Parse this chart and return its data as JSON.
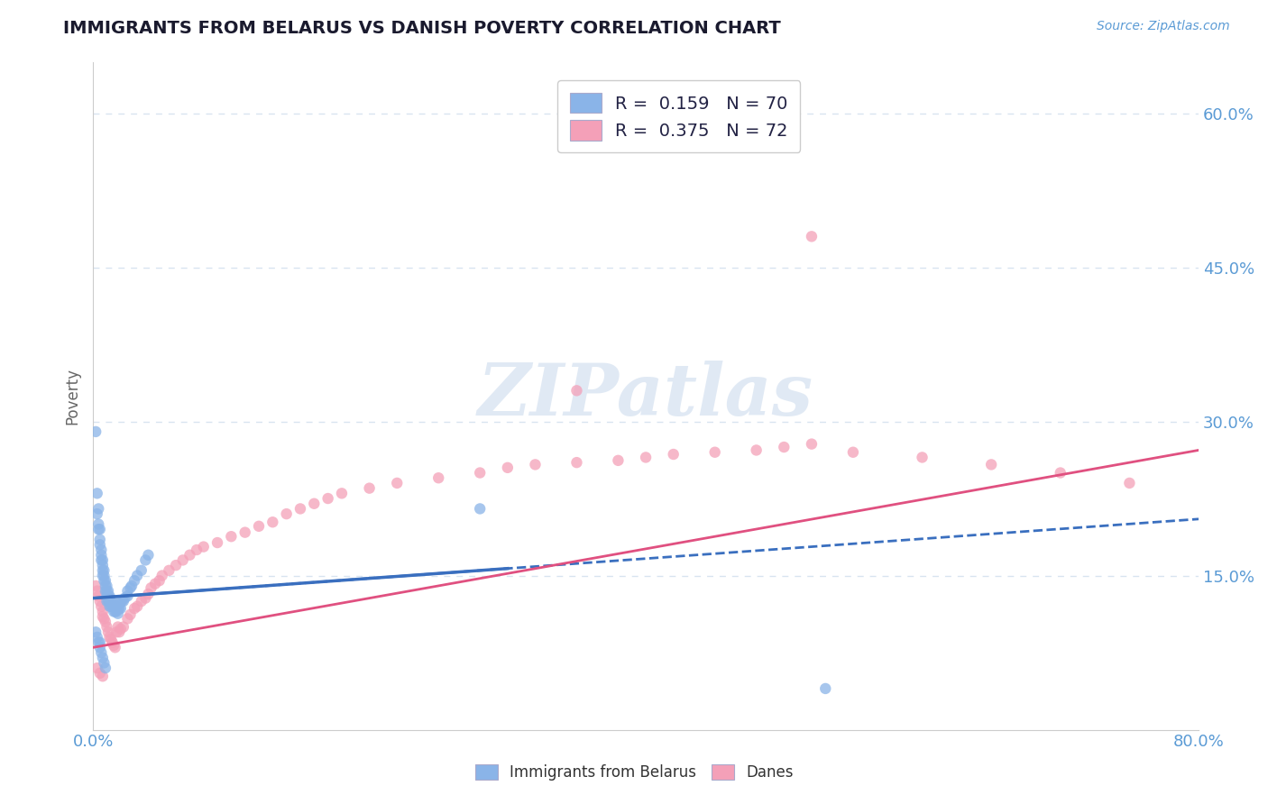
{
  "title": "IMMIGRANTS FROM BELARUS VS DANISH POVERTY CORRELATION CHART",
  "source_text": "Source: ZipAtlas.com",
  "ylabel": "Poverty",
  "xlim": [
    0.0,
    0.8
  ],
  "ylim": [
    0.0,
    0.65
  ],
  "yticks": [
    0.15,
    0.3,
    0.45,
    0.6
  ],
  "ytick_labels": [
    "15.0%",
    "30.0%",
    "45.0%",
    "60.0%"
  ],
  "xticks": [
    0.0,
    0.1,
    0.2,
    0.3,
    0.4,
    0.5,
    0.6,
    0.7,
    0.8
  ],
  "xtick_labels": [
    "0.0%",
    "",
    "",
    "",
    "",
    "",
    "",
    "",
    "80.0%"
  ],
  "color_blue": "#8AB4E8",
  "color_pink": "#F4A0B8",
  "color_blue_line": "#3A6FBF",
  "color_pink_line": "#E05080",
  "color_axis_text": "#5B9BD5",
  "watermark": "ZIPatlas",
  "background_color": "#FFFFFF",
  "grid_color": "#D8E4F0",
  "blue_line_x0": 0.0,
  "blue_line_x1": 0.8,
  "blue_line_y0": 0.128,
  "blue_line_y1": 0.205,
  "pink_line_x0": 0.0,
  "pink_line_x1": 0.8,
  "pink_line_y0": 0.08,
  "pink_line_y1": 0.272,
  "legend_label1": "R =  0.159   N = 70",
  "legend_label2": "R =  0.375   N = 72",
  "legend_xlabel": "Immigrants from Belarus",
  "legend_xlabel2": "Danes",
  "blue_scatter_x": [
    0.002,
    0.003,
    0.003,
    0.004,
    0.004,
    0.004,
    0.005,
    0.005,
    0.005,
    0.006,
    0.006,
    0.006,
    0.007,
    0.007,
    0.007,
    0.007,
    0.008,
    0.008,
    0.008,
    0.009,
    0.009,
    0.009,
    0.01,
    0.01,
    0.01,
    0.01,
    0.011,
    0.011,
    0.011,
    0.012,
    0.012,
    0.012,
    0.013,
    0.013,
    0.014,
    0.014,
    0.015,
    0.015,
    0.016,
    0.016,
    0.017,
    0.017,
    0.018,
    0.018,
    0.019,
    0.02,
    0.02,
    0.021,
    0.022,
    0.023,
    0.025,
    0.025,
    0.027,
    0.028,
    0.03,
    0.032,
    0.035,
    0.038,
    0.04,
    0.002,
    0.003,
    0.004,
    0.005,
    0.005,
    0.006,
    0.007,
    0.008,
    0.009,
    0.28,
    0.53
  ],
  "blue_scatter_y": [
    0.29,
    0.23,
    0.21,
    0.215,
    0.2,
    0.195,
    0.195,
    0.185,
    0.18,
    0.175,
    0.17,
    0.165,
    0.165,
    0.16,
    0.155,
    0.15,
    0.155,
    0.15,
    0.145,
    0.145,
    0.14,
    0.135,
    0.14,
    0.135,
    0.13,
    0.125,
    0.135,
    0.13,
    0.125,
    0.13,
    0.125,
    0.12,
    0.125,
    0.12,
    0.125,
    0.12,
    0.12,
    0.115,
    0.12,
    0.115,
    0.12,
    0.115,
    0.118,
    0.113,
    0.118,
    0.125,
    0.118,
    0.125,
    0.125,
    0.128,
    0.13,
    0.135,
    0.138,
    0.14,
    0.145,
    0.15,
    0.155,
    0.165,
    0.17,
    0.095,
    0.09,
    0.085,
    0.085,
    0.08,
    0.075,
    0.07,
    0.065,
    0.06,
    0.215,
    0.04
  ],
  "pink_scatter_x": [
    0.002,
    0.003,
    0.004,
    0.005,
    0.006,
    0.007,
    0.007,
    0.008,
    0.009,
    0.01,
    0.011,
    0.012,
    0.013,
    0.014,
    0.015,
    0.016,
    0.017,
    0.018,
    0.019,
    0.02,
    0.022,
    0.025,
    0.027,
    0.03,
    0.032,
    0.035,
    0.038,
    0.04,
    0.042,
    0.045,
    0.048,
    0.05,
    0.055,
    0.06,
    0.065,
    0.07,
    0.075,
    0.08,
    0.09,
    0.1,
    0.11,
    0.12,
    0.13,
    0.14,
    0.15,
    0.16,
    0.17,
    0.18,
    0.2,
    0.22,
    0.25,
    0.28,
    0.3,
    0.32,
    0.35,
    0.38,
    0.4,
    0.42,
    0.45,
    0.48,
    0.5,
    0.52,
    0.55,
    0.6,
    0.65,
    0.7,
    0.75,
    0.003,
    0.005,
    0.007,
    0.35,
    0.52
  ],
  "pink_scatter_y": [
    0.14,
    0.135,
    0.13,
    0.125,
    0.12,
    0.115,
    0.11,
    0.108,
    0.105,
    0.1,
    0.095,
    0.09,
    0.088,
    0.085,
    0.082,
    0.08,
    0.095,
    0.1,
    0.095,
    0.098,
    0.1,
    0.108,
    0.112,
    0.118,
    0.12,
    0.125,
    0.128,
    0.132,
    0.138,
    0.142,
    0.145,
    0.15,
    0.155,
    0.16,
    0.165,
    0.17,
    0.175,
    0.178,
    0.182,
    0.188,
    0.192,
    0.198,
    0.202,
    0.21,
    0.215,
    0.22,
    0.225,
    0.23,
    0.235,
    0.24,
    0.245,
    0.25,
    0.255,
    0.258,
    0.26,
    0.262,
    0.265,
    0.268,
    0.27,
    0.272,
    0.275,
    0.278,
    0.27,
    0.265,
    0.258,
    0.25,
    0.24,
    0.06,
    0.055,
    0.052,
    0.33,
    0.48
  ]
}
